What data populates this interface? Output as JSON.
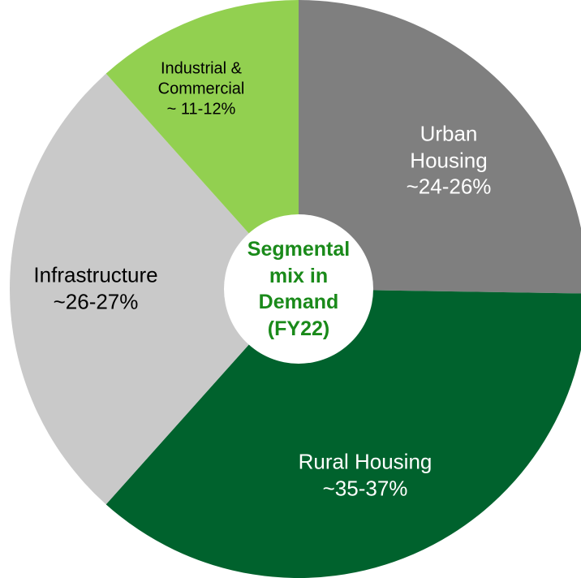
{
  "chart_data": {
    "type": "pie",
    "center_text": "Segmental\nmix in\nDemand\n(FY22)",
    "categories": [
      "Urban\nHousing",
      "Rural Housing",
      "Infrastructure",
      "Industrial &\nCommercial"
    ],
    "values": [
      25,
      36,
      26.5,
      11.5
    ],
    "value_labels": [
      "~24-26%",
      "~35-37%",
      "~26-27%",
      "~ 11-12%"
    ],
    "colors": [
      "#7f7f7f",
      "#00622d",
      "#c9c9c9",
      "#92d050"
    ]
  }
}
